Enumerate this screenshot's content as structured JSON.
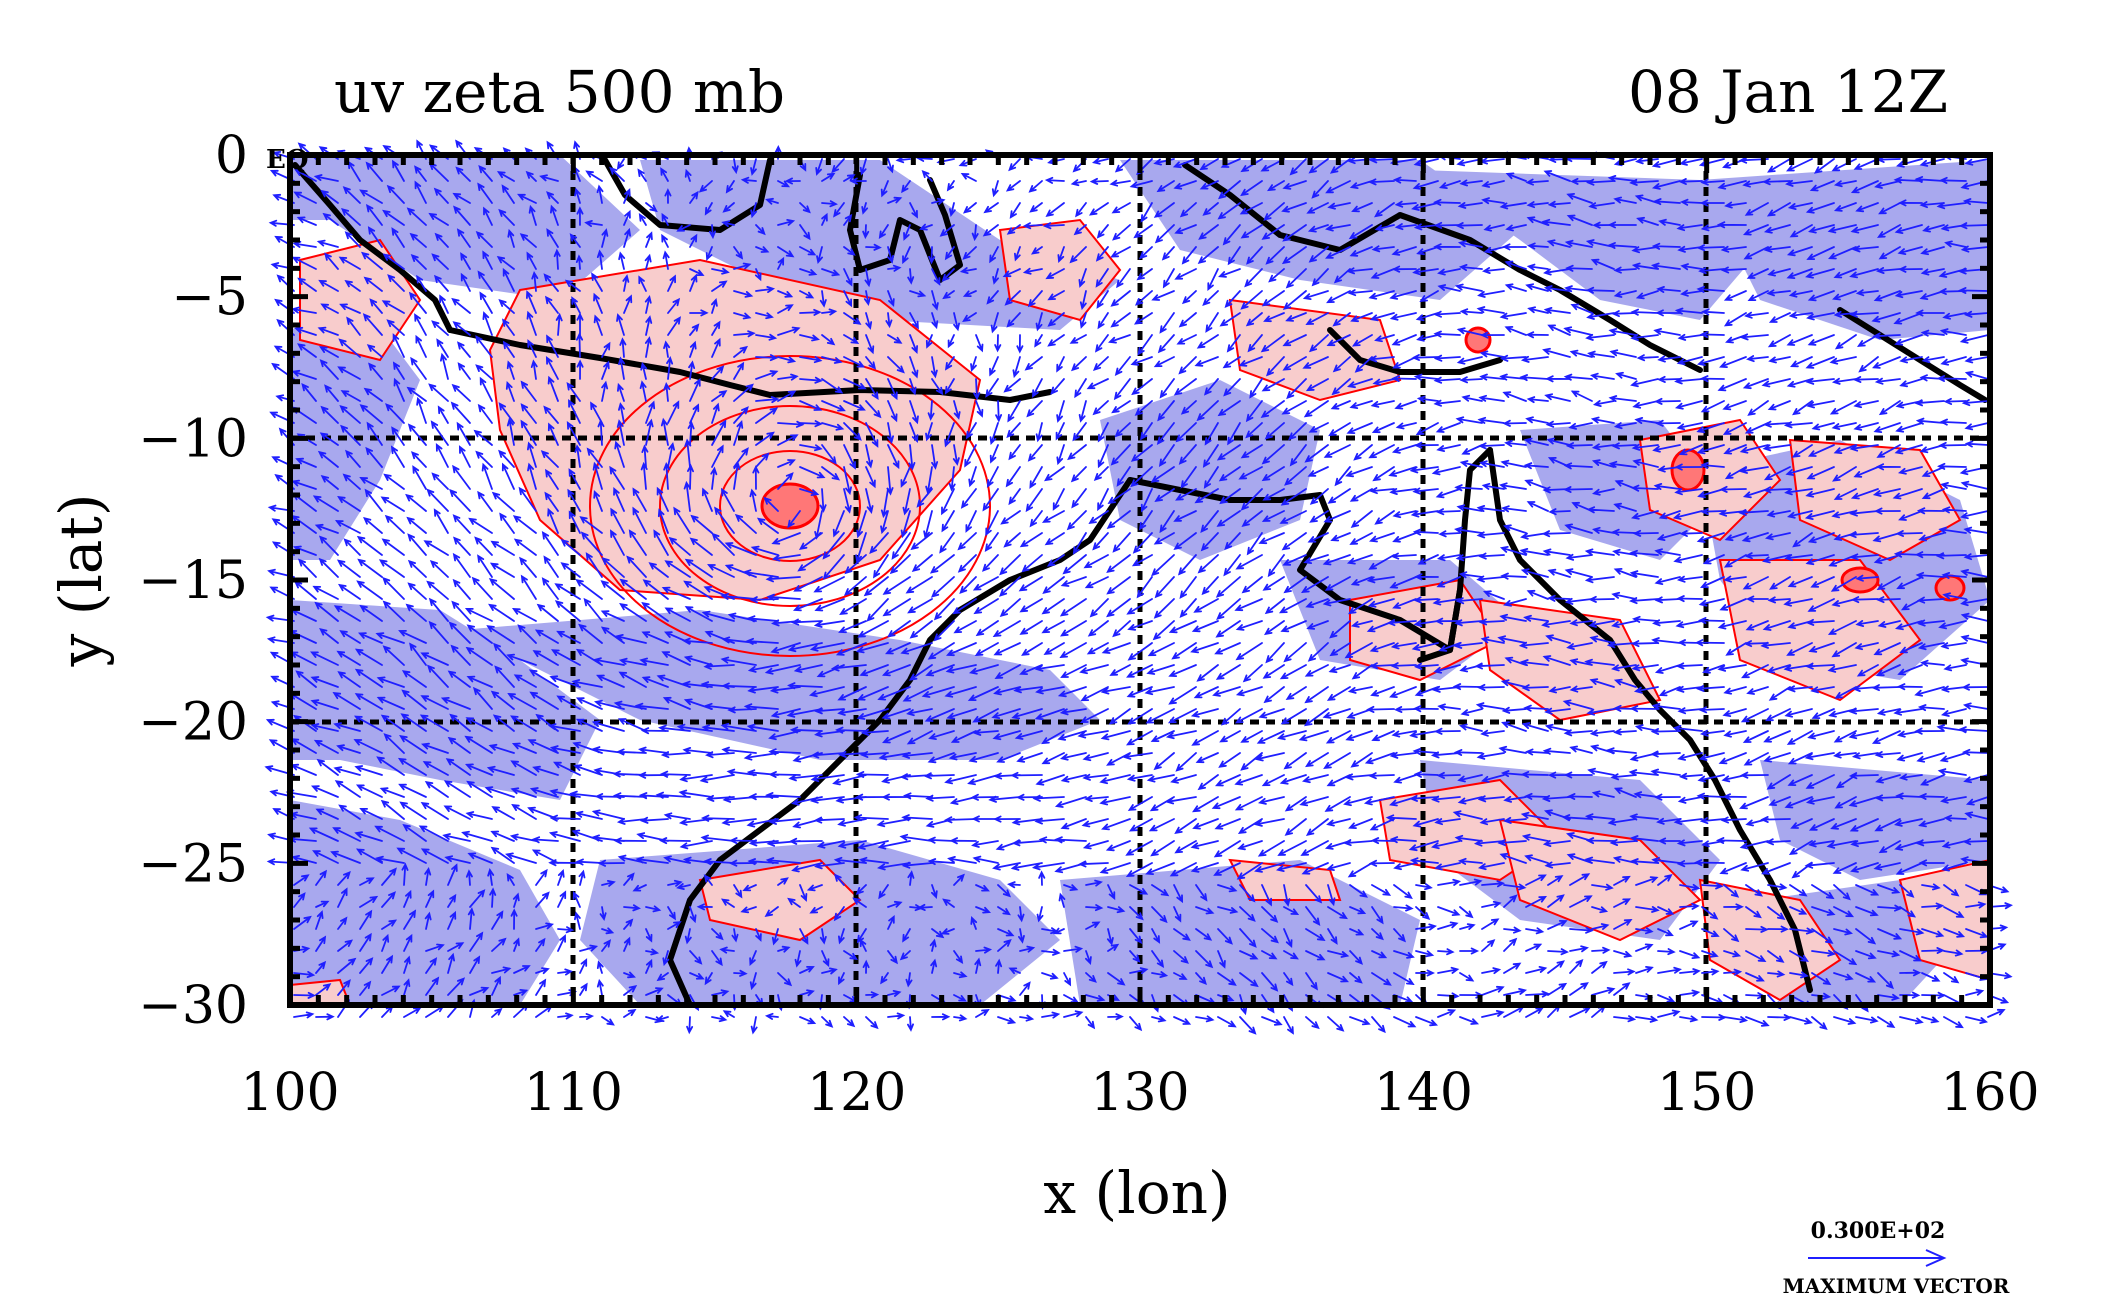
{
  "map": {
    "title": "uv zeta 500 mb",
    "timestamp": "08 Jan 12Z",
    "corner_label": "EQ",
    "x_axis": {
      "label": "x (lon)",
      "ticks": [
        "100",
        "110",
        "120",
        "130",
        "140",
        "150",
        "160"
      ],
      "range": [
        100,
        160
      ]
    },
    "y_axis": {
      "label": "y (lat)",
      "ticks": [
        "0",
        "−5",
        "−10",
        "−15",
        "−20",
        "−25",
        "−30"
      ],
      "range": [
        -30,
        0
      ]
    },
    "gridlines": "dashed, every 10 degrees",
    "vector_legend": {
      "value": "0.300E+02",
      "caption": "MAXIMUM VECTOR"
    },
    "colors": {
      "vectors": "#1f1fff",
      "positive_contours": "#ff0000",
      "positive_fill": "#f8cccc",
      "negative_fill": "#a8a8ee",
      "coastline": "#000000",
      "frame": "#000000"
    }
  }
}
